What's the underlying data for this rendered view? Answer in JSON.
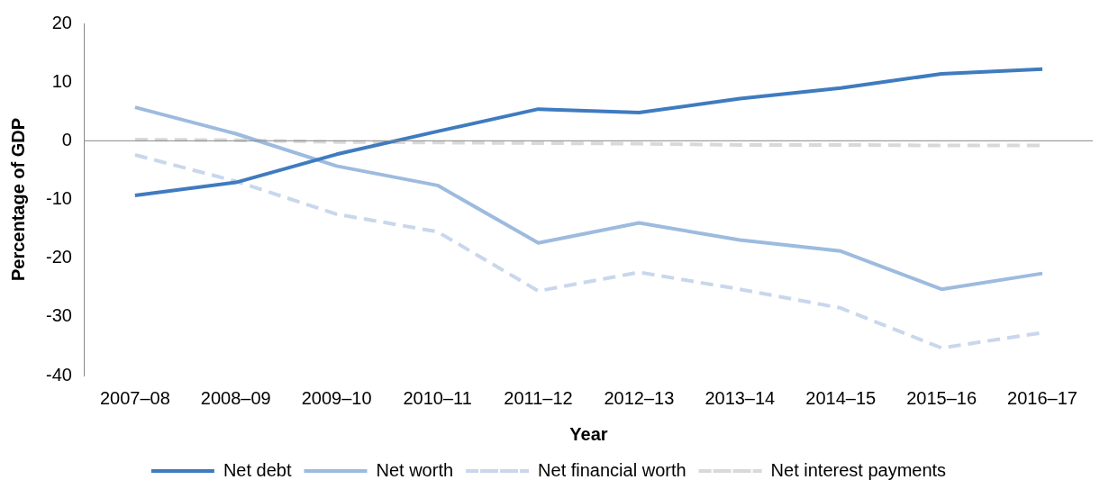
{
  "chart_data": {
    "type": "line",
    "xlabel": "Year",
    "ylabel": "Percentage of GDP",
    "categories": [
      "2007–08",
      "2008–09",
      "2009–10",
      "2010–11",
      "2011–12",
      "2012–13",
      "2013–14",
      "2014–15",
      "2015–16",
      "2016–17"
    ],
    "series": [
      {
        "name": "Net debt",
        "color": "#3f7bbf",
        "line_style": "solid",
        "values": [
          -9.3,
          -7.1,
          -2.3,
          1.6,
          5.4,
          4.8,
          7.2,
          9.0,
          11.4,
          12.2
        ]
      },
      {
        "name": "Net worth",
        "color": "#9dbbdf",
        "line_style": "solid",
        "values": [
          5.7,
          1.2,
          -4.3,
          -7.6,
          -17.4,
          -14.0,
          -16.9,
          -18.8,
          -25.3,
          -22.6
        ]
      },
      {
        "name": "Net financial worth",
        "color": "#c9d7ec",
        "line_style": "dashed",
        "values": [
          -2.4,
          -6.9,
          -12.5,
          -15.5,
          -25.6,
          -22.4,
          -25.3,
          -28.5,
          -35.3,
          -32.7
        ]
      },
      {
        "name": "Net interest payments",
        "color": "#d9d9d9",
        "line_style": "dashed",
        "values": [
          0.2,
          0.1,
          -0.2,
          -0.3,
          -0.4,
          -0.5,
          -0.7,
          -0.7,
          -0.8,
          -0.8
        ]
      }
    ],
    "ylim": [
      -40,
      20
    ],
    "yticks": [
      -40,
      -30,
      -20,
      -10,
      0,
      10,
      20
    ],
    "ref_lines": [
      {
        "axis": "y",
        "value": 0,
        "color": "#888888",
        "line_style": "solid"
      }
    ],
    "grid": false,
    "legend": "bottom",
    "marker": "none"
  }
}
